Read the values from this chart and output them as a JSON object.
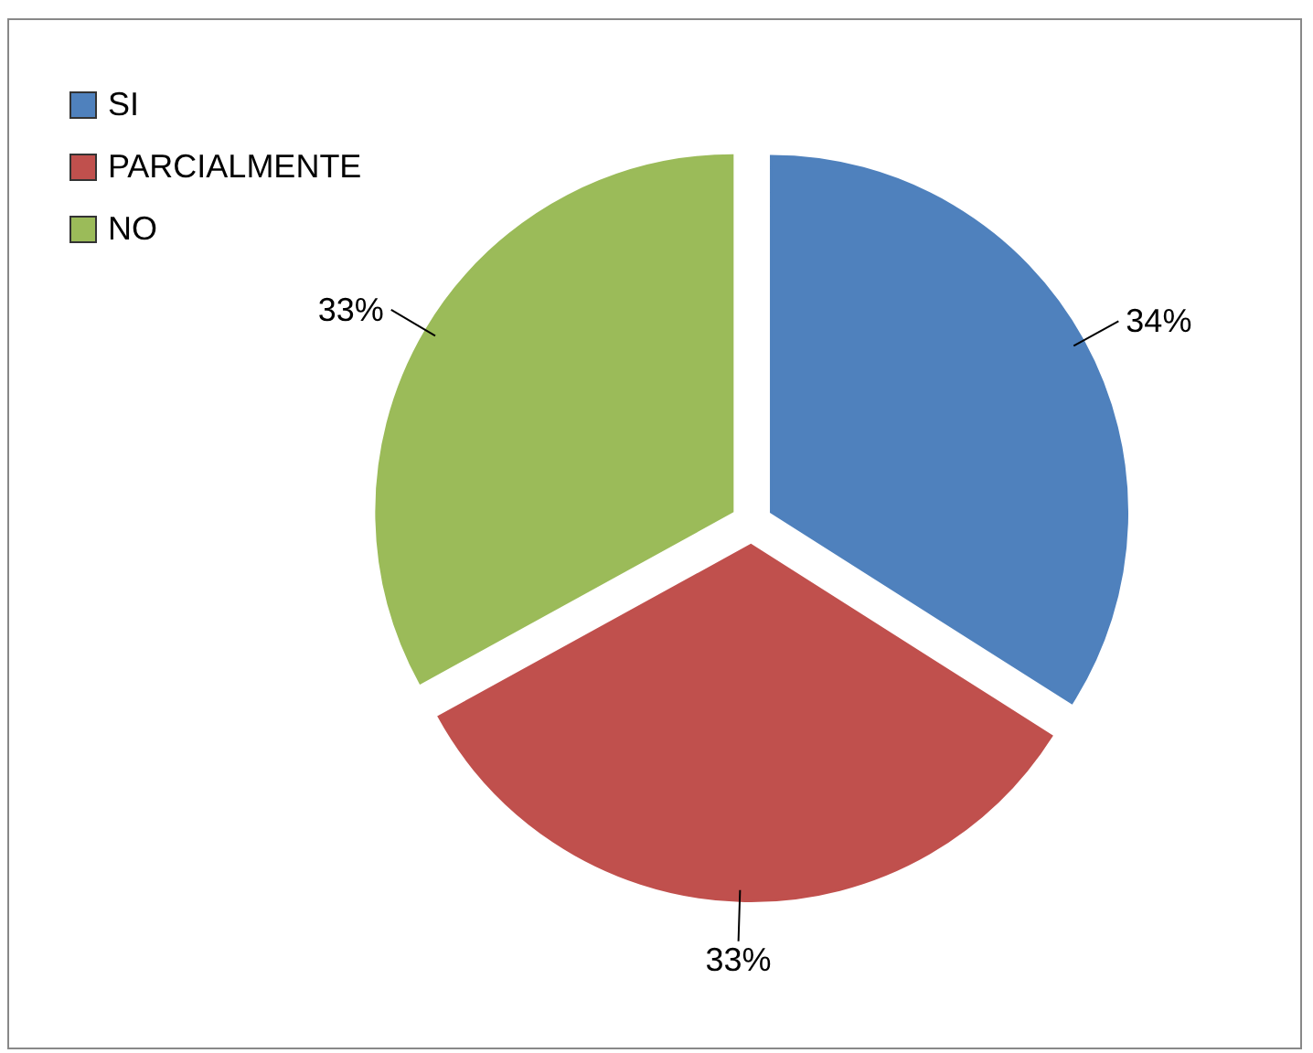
{
  "chart_data": {
    "type": "pie",
    "categories": [
      "SI",
      "PARCIALMENTE",
      "NO"
    ],
    "values": [
      34,
      33,
      33
    ],
    "colors": [
      "#4f81bd",
      "#c0504d",
      "#9bbb59"
    ],
    "value_labels": [
      "34%",
      "33%",
      "33%"
    ],
    "legend": "top left"
  }
}
